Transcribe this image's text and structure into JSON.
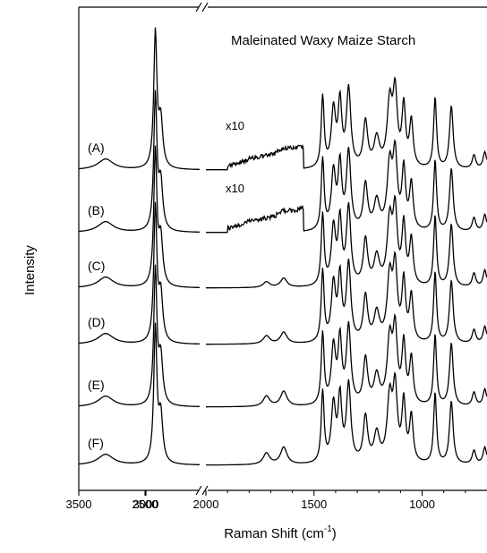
{
  "chart_data": {
    "type": "line",
    "title": "Maleinated Waxy Maize Starch",
    "xlabel": "Raman Shift (cm-1)",
    "xlabel_parts": {
      "main": "Raman Shift (cm",
      "sup": "-1",
      "close": ")"
    },
    "ylabel": "Intensity",
    "x_reversed": true,
    "axis_break": {
      "from": 2600,
      "to": 2000
    },
    "xlim_left": [
      3500,
      2600
    ],
    "xlim_right": [
      2000,
      700
    ],
    "x_ticks": [
      3500,
      3000,
      2500,
      2000,
      1500,
      1000
    ],
    "x_tick_labels": [
      "3500",
      "3000",
      "2500",
      "2000",
      "1500",
      "1000"
    ],
    "grid": false,
    "series": [
      {
        "name": "(A)",
        "annotation": "x10"
      },
      {
        "name": "(B)",
        "annotation": "x10"
      },
      {
        "name": "(C)"
      },
      {
        "name": "(D)"
      },
      {
        "name": "(E)"
      },
      {
        "name": "(F)"
      }
    ],
    "peaks": [
      {
        "x": 3300,
        "h": 0.08,
        "w": 70
      },
      {
        "x": 2930,
        "h": 1.0,
        "w": 14
      },
      {
        "x": 2890,
        "h": 0.35,
        "w": 18
      },
      {
        "x": 1460,
        "h": 0.62,
        "w": 8
      },
      {
        "x": 1410,
        "h": 0.5,
        "w": 12
      },
      {
        "x": 1380,
        "h": 0.55,
        "w": 10
      },
      {
        "x": 1340,
        "h": 0.68,
        "w": 12
      },
      {
        "x": 1262,
        "h": 0.4,
        "w": 12
      },
      {
        "x": 1210,
        "h": 0.25,
        "w": 15
      },
      {
        "x": 1150,
        "h": 0.55,
        "w": 14
      },
      {
        "x": 1125,
        "h": 0.62,
        "w": 12
      },
      {
        "x": 1085,
        "h": 0.52,
        "w": 10
      },
      {
        "x": 1050,
        "h": 0.4,
        "w": 10
      },
      {
        "x": 940,
        "h": 0.62,
        "w": 8
      },
      {
        "x": 865,
        "h": 0.55,
        "w": 10
      },
      {
        "x": 760,
        "h": 0.12,
        "w": 10
      },
      {
        "x": 710,
        "h": 0.15,
        "w": 10
      }
    ],
    "carbonyl_peaks": [
      {
        "x": 1720,
        "a": [
          0,
          0,
          0.05,
          0.07,
          0.09,
          0.1
        ]
      },
      {
        "x": 1640,
        "a": [
          0,
          0,
          0.08,
          0.1,
          0.13,
          0.15
        ]
      }
    ],
    "x10_window": [
      1900,
      1550
    ]
  }
}
